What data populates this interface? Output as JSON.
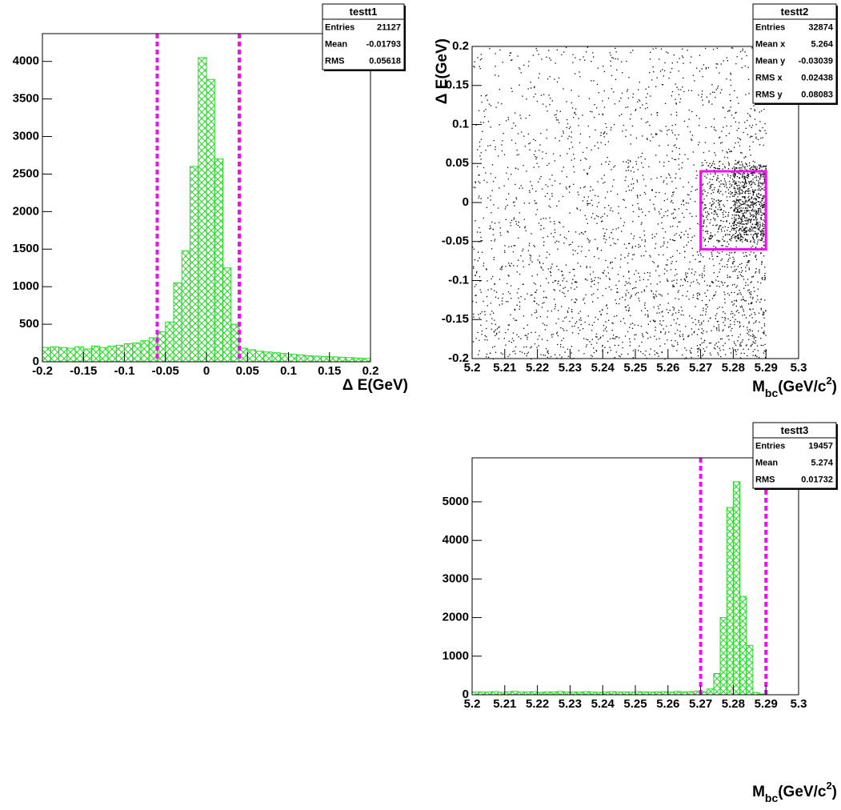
{
  "chart_data": [
    {
      "type": "histogram",
      "stats": {
        "title": "testt1",
        "rows": [
          [
            "Entries",
            "21127"
          ],
          [
            "Mean",
            "-0.01793"
          ],
          [
            "RMS",
            "0.05618"
          ]
        ]
      },
      "x_label": [
        {
          "text": "Δ E(GeV)",
          "script": "normal"
        }
      ],
      "bins": [
        -0.2,
        -0.19,
        -0.18,
        -0.17,
        -0.16,
        -0.15,
        -0.14,
        -0.13,
        -0.12,
        -0.11,
        -0.1,
        -0.09,
        -0.08,
        -0.07,
        -0.06,
        -0.05,
        -0.04,
        -0.03,
        -0.02,
        -0.01,
        0,
        0.01,
        0.02,
        0.03,
        0.04,
        0.05,
        0.06,
        0.07,
        0.08,
        0.09,
        0.1,
        0.11,
        0.12,
        0.13,
        0.14,
        0.15,
        0.16,
        0.17,
        0.18,
        0.19,
        0.2
      ],
      "values": [
        190,
        200,
        190,
        180,
        200,
        170,
        210,
        190,
        210,
        220,
        240,
        250,
        280,
        320,
        400,
        530,
        1050,
        1480,
        2600,
        4050,
        3760,
        2700,
        1250,
        500,
        180,
        160,
        140,
        130,
        120,
        110,
        100,
        90,
        80,
        75,
        70,
        65,
        60,
        55,
        50,
        45
      ],
      "color": "#22dd22",
      "cut_lines": [
        -0.06,
        0.04
      ],
      "cut_color": "#ee11ee",
      "xlim": [
        -0.2,
        0.2
      ],
      "xticks": [
        -0.2,
        -0.15,
        -0.1,
        -0.05,
        0,
        0.05,
        0.1,
        0.15,
        0.2
      ],
      "ylim": [
        0,
        4370
      ],
      "yticks": [
        0,
        500,
        1000,
        1500,
        2000,
        2500,
        3000,
        3500,
        4000
      ]
    },
    {
      "type": "scatter",
      "stats": {
        "title": "testt2",
        "rows": [
          [
            "Entries",
            "32874"
          ],
          [
            "Mean x",
            "5.264"
          ],
          [
            "Mean y",
            "-0.03039"
          ],
          [
            "RMS x",
            "0.02438"
          ],
          [
            "RMS y",
            "0.08083"
          ]
        ]
      },
      "x_label": [
        {
          "text": "M",
          "script": "normal"
        },
        {
          "text": "bc",
          "script": "sub"
        },
        {
          "text": "(GeV/c",
          "script": "normal"
        },
        {
          "text": "2",
          "script": "sup"
        },
        {
          "text": ")",
          "script": "normal"
        }
      ],
      "y_label": "Δ E(GeV)",
      "xbins": [
        5.2,
        5.21,
        5.22,
        5.23,
        5.24,
        5.25,
        5.26,
        5.27,
        5.28,
        5.29,
        5.3
      ],
      "ybins": [
        -0.2,
        -0.15,
        -0.1,
        -0.05,
        0,
        0.05,
        0.1,
        0.15,
        0.2
      ],
      "counts": [
        [
          420,
          440,
          460,
          480,
          500,
          520,
          560,
          700,
          900,
          0
        ],
        [
          380,
          400,
          410,
          430,
          450,
          470,
          510,
          650,
          850,
          0
        ],
        [
          330,
          350,
          360,
          380,
          400,
          420,
          460,
          620,
          900,
          0
        ],
        [
          290,
          300,
          310,
          330,
          350,
          370,
          420,
          1500,
          4200,
          0
        ],
        [
          260,
          270,
          280,
          290,
          310,
          330,
          370,
          1300,
          3600,
          0
        ],
        [
          220,
          230,
          240,
          250,
          260,
          280,
          300,
          400,
          500,
          0
        ],
        [
          190,
          200,
          210,
          220,
          230,
          240,
          260,
          300,
          340,
          0
        ],
        [
          160,
          170,
          180,
          190,
          200,
          210,
          220,
          250,
          280,
          0
        ]
      ],
      "color": "#000000",
      "box": {
        "x": [
          5.27,
          5.29
        ],
        "y": [
          -0.06,
          0.04
        ]
      },
      "box_color": "#ee11ee",
      "xlim": [
        5.2,
        5.3
      ],
      "xticks": [
        5.2,
        5.21,
        5.22,
        5.23,
        5.24,
        5.25,
        5.26,
        5.27,
        5.28,
        5.29,
        5.3
      ],
      "ylim": [
        -0.2,
        0.2
      ],
      "yticks": [
        -0.2,
        -0.15,
        -0.1,
        -0.05,
        0,
        0.05,
        0.1,
        0.15,
        0.2
      ]
    },
    {
      "type": "histogram",
      "stats": {
        "title": "testt3",
        "rows": [
          [
            "Entries",
            "19457"
          ],
          [
            "Mean",
            "5.274"
          ],
          [
            "RMS",
            "0.01732"
          ]
        ]
      },
      "x_label": [
        {
          "text": "M",
          "script": "normal"
        },
        {
          "text": "bc",
          "script": "sub"
        },
        {
          "text": "(GeV/c",
          "script": "normal"
        },
        {
          "text": "2",
          "script": "sup"
        },
        {
          "text": ")",
          "script": "normal"
        }
      ],
      "bins": [
        5.2,
        5.202,
        5.204,
        5.206,
        5.208,
        5.21,
        5.212,
        5.214,
        5.216,
        5.218,
        5.22,
        5.222,
        5.224,
        5.226,
        5.228,
        5.23,
        5.232,
        5.234,
        5.236,
        5.238,
        5.24,
        5.242,
        5.244,
        5.246,
        5.248,
        5.25,
        5.252,
        5.254,
        5.256,
        5.258,
        5.26,
        5.262,
        5.264,
        5.266,
        5.268,
        5.27,
        5.272,
        5.274,
        5.276,
        5.278,
        5.28,
        5.282,
        5.284,
        5.286,
        5.288,
        5.29,
        5.292,
        5.294,
        5.296,
        5.298,
        5.3
      ],
      "values": [
        70,
        75,
        70,
        80,
        65,
        75,
        90,
        70,
        75,
        80,
        65,
        75,
        70,
        85,
        70,
        75,
        70,
        80,
        70,
        65,
        75,
        80,
        70,
        75,
        70,
        80,
        75,
        70,
        75,
        80,
        70,
        85,
        75,
        80,
        90,
        80,
        150,
        550,
        2000,
        4850,
        5520,
        2550,
        1280,
        60,
        20,
        0,
        0,
        0,
        0,
        0
      ],
      "color": "#22dd22",
      "cut_lines": [
        5.27,
        5.29
      ],
      "cut_color": "#ee11ee",
      "xlim": [
        5.2,
        5.3
      ],
      "xticks": [
        5.2,
        5.21,
        5.22,
        5.23,
        5.24,
        5.25,
        5.26,
        5.27,
        5.28,
        5.29,
        5.3
      ],
      "ylim": [
        0,
        6140
      ],
      "yticks": [
        0,
        1000,
        2000,
        3000,
        4000,
        5000
      ]
    }
  ]
}
